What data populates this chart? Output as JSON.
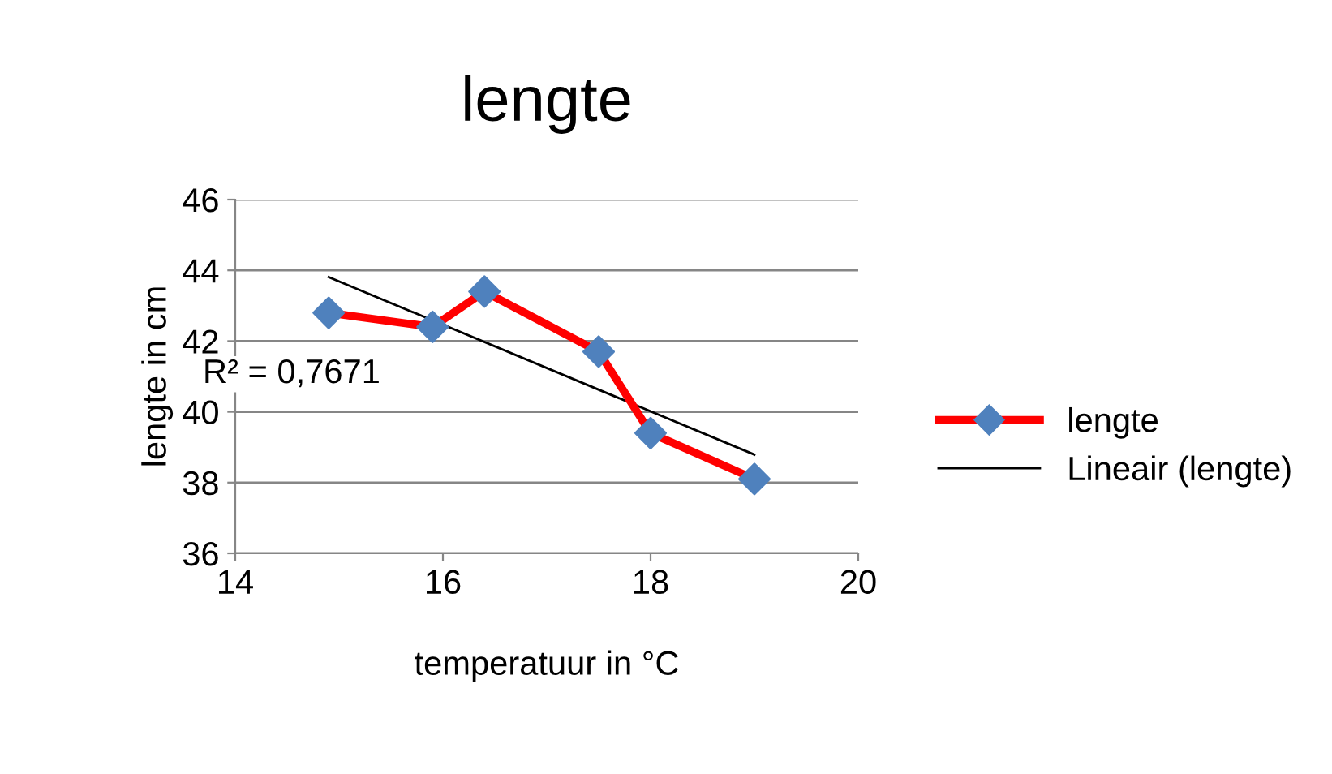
{
  "chart_data": {
    "type": "line",
    "title": "lengte",
    "xlabel": "temperatuur in °C",
    "ylabel": "lengte in cm",
    "series": [
      {
        "name": "lengte",
        "color": "#ff0000",
        "colors": [
          "#4f81bd",
          "#4f81bd",
          "#4f81bd",
          "#4f81bd",
          "#4f81bd",
          "#4f81bd"
        ],
        "marker": "diamond",
        "x": [
          14.9,
          15.9,
          16.4,
          17.5,
          18.0,
          19.0
        ],
        "values": [
          42.8,
          42.4,
          43.4,
          41.7,
          39.4,
          38.1
        ]
      },
      {
        "name": "Lineair (lengte)",
        "color": "#000000",
        "marker": "none",
        "x": [
          14.9,
          19.0
        ],
        "values": [
          43.81,
          38.79
        ]
      }
    ],
    "annotations": [
      "R² = 0,7671"
    ],
    "xlim": [
      14,
      20
    ],
    "xticks": [
      14,
      16,
      18,
      20
    ],
    "ylim": [
      36,
      46
    ],
    "yticks": [
      36,
      38,
      40,
      42,
      44,
      46
    ],
    "grid": "y",
    "legend": "right",
    "line_style": "solid"
  }
}
